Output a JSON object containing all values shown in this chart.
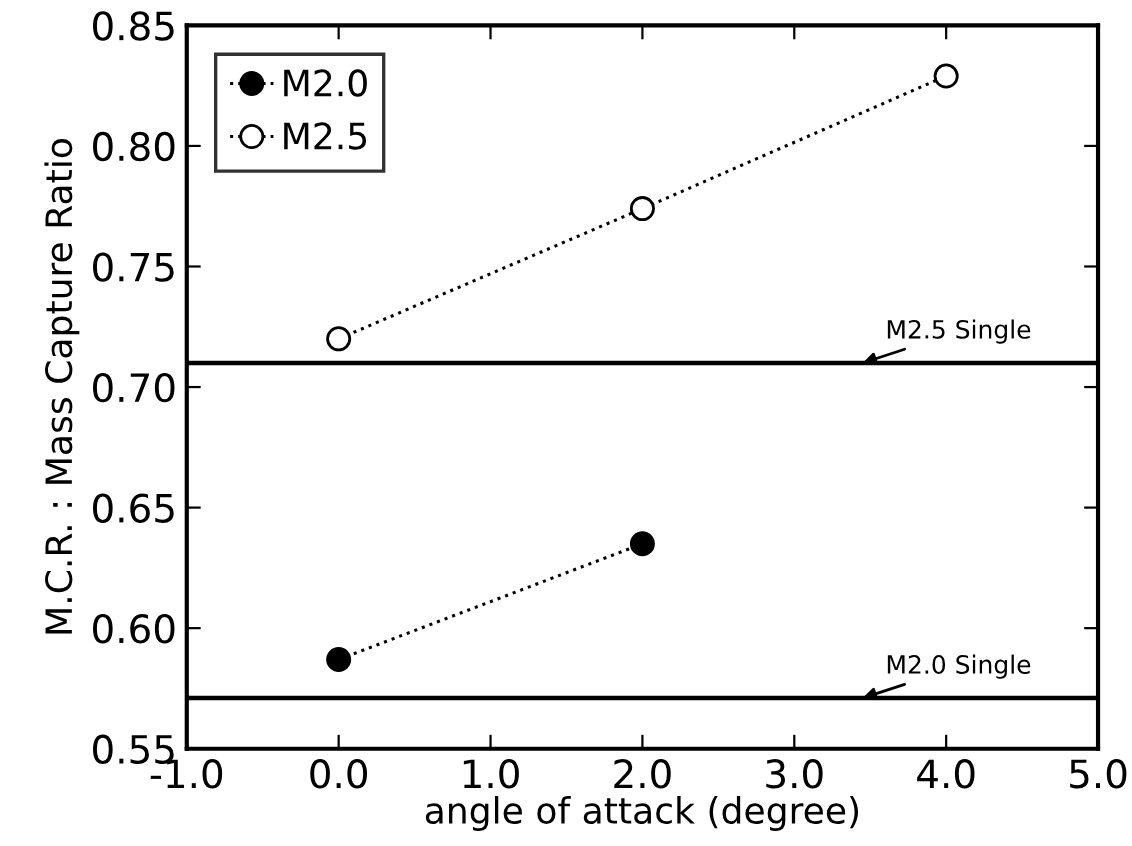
{
  "chart_data": {
    "type": "line",
    "xlabel": "angle of attack (degree)",
    "ylabel": "M.C.R. : Mass Capture Ratio",
    "xlim": [
      -1.0,
      5.0
    ],
    "xticks": [
      {
        "value": -1,
        "label": "-1.0"
      },
      {
        "value": 0,
        "label": "0.0"
      },
      {
        "value": 1,
        "label": "1.0"
      },
      {
        "value": 2,
        "label": "2.0"
      },
      {
        "value": 3,
        "label": "3.0"
      },
      {
        "value": 4,
        "label": "4.0"
      },
      {
        "value": 5,
        "label": "5.0"
      }
    ],
    "ylim": [
      0.55,
      0.85
    ],
    "yticks": [
      {
        "value": 0.55,
        "label": "0.55"
      },
      {
        "value": 0.6,
        "label": "0.60"
      },
      {
        "value": 0.65,
        "label": "0.65"
      },
      {
        "value": 0.7,
        "label": "0.70"
      },
      {
        "value": 0.75,
        "label": "0.75"
      },
      {
        "value": 0.8,
        "label": "0.80"
      },
      {
        "value": 0.85,
        "label": "0.85"
      }
    ],
    "series": [
      {
        "name": "M2.0",
        "color": "#000000",
        "x": [
          0,
          2
        ],
        "values": [
          0.587,
          0.635
        ],
        "marker": "circle",
        "line_style": "dotted"
      },
      {
        "name": "M2.5",
        "color": "#000000",
        "x": [
          0,
          2,
          4
        ],
        "values": [
          0.72,
          0.774,
          0.829
        ],
        "marker": "circle",
        "line_style": "dotted"
      }
    ],
    "ref_lines": [
      {
        "axis": "y",
        "value": 0.71,
        "label": "M2.5 Single",
        "color": "#000000",
        "line_style": "solid"
      },
      {
        "axis": "y",
        "value": 0.571,
        "label": "M2.0 Single",
        "color": "#000000",
        "line_style": "solid"
      }
    ],
    "legend": "top left",
    "grid": false
  }
}
